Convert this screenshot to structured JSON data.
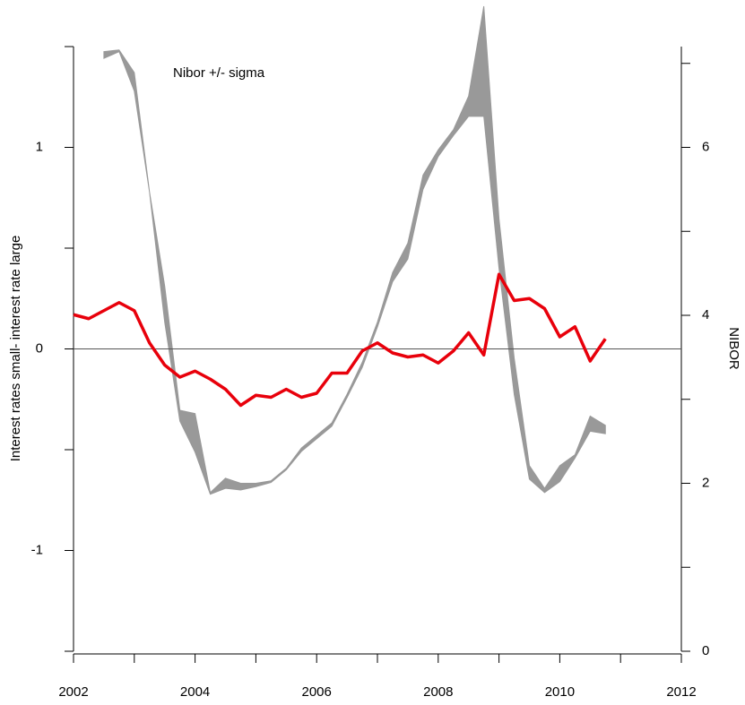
{
  "chart_data": {
    "type": "line",
    "y_label": "Interest rates small- interest rate large",
    "y2_label": "NIBOR",
    "xlim": [
      2002,
      2012
    ],
    "xticks": [
      2002,
      2004,
      2006,
      2008,
      2010,
      2012
    ],
    "xminorticks": [
      2003,
      2005,
      2007,
      2009,
      2011
    ],
    "ylim": [
      -1.5,
      1.5
    ],
    "yticks": [
      -1,
      0,
      1
    ],
    "yminorticks": [
      -1.5,
      -0.5,
      0.5,
      1.5
    ],
    "y2lim": [
      0,
      7.2
    ],
    "y2ticks": [
      0,
      2,
      4,
      6
    ],
    "y2minorticks": [
      1,
      3,
      5,
      7
    ],
    "zero_line": true,
    "x": [
      2002.0,
      2002.25,
      2002.5,
      2002.75,
      2003.0,
      2003.25,
      2003.5,
      2003.75,
      2004.0,
      2004.25,
      2004.5,
      2004.75,
      2005.0,
      2005.25,
      2005.5,
      2005.75,
      2006.0,
      2006.25,
      2006.5,
      2006.75,
      2007.0,
      2007.25,
      2007.5,
      2007.75,
      2008.0,
      2008.25,
      2008.5,
      2008.75,
      2009.0,
      2009.25,
      2009.5,
      2009.75,
      2010.0,
      2010.25,
      2010.5,
      2010.75
    ],
    "series": [
      {
        "color": "#e8000b",
        "values": [
          0.17,
          0.15,
          0.19,
          0.23,
          0.19,
          0.03,
          -0.08,
          -0.14,
          -0.11,
          -0.15,
          -0.2,
          -0.28,
          -0.23,
          -0.24,
          -0.2,
          -0.24,
          -0.22,
          -0.12,
          -0.12,
          -0.01,
          0.03,
          -0.02,
          -0.04,
          -0.03,
          -0.07,
          -0.01,
          0.08,
          -0.03,
          0.37,
          0.24,
          0.25,
          0.2,
          0.06,
          0.11,
          -0.06,
          0.05
        ]
      }
    ],
    "band": {
      "name": "Nibor +/- sigma",
      "color": "#999999",
      "axis": "y2",
      "x": [
        2002.5,
        2002.75,
        2003.0,
        2003.25,
        2003.5,
        2003.75,
        2004.0,
        2004.25,
        2004.5,
        2004.75,
        2005.0,
        2005.25,
        2005.5,
        2005.75,
        2006.0,
        2006.25,
        2006.5,
        2006.75,
        2007.0,
        2007.25,
        2007.5,
        2007.75,
        2008.0,
        2008.25,
        2008.5,
        2008.75,
        2009.0,
        2009.25,
        2009.5,
        2009.75,
        2010.0,
        2010.25,
        2010.5,
        2010.75
      ],
      "high": [
        7.14,
        7.16,
        6.89,
        5.47,
        4.35,
        2.87,
        2.83,
        1.89,
        2.06,
        2.0,
        2.0,
        2.03,
        2.18,
        2.42,
        2.57,
        2.72,
        3.06,
        3.44,
        3.92,
        4.51,
        4.86,
        5.67,
        5.97,
        6.21,
        6.61,
        7.68,
        5.15,
        3.49,
        2.21,
        1.94,
        2.21,
        2.34,
        2.8,
        2.69
      ],
      "low": [
        7.06,
        7.14,
        6.67,
        5.47,
        3.92,
        2.74,
        2.37,
        1.87,
        1.94,
        1.92,
        1.96,
        2.01,
        2.16,
        2.38,
        2.53,
        2.68,
        3.02,
        3.38,
        3.86,
        4.4,
        4.67,
        5.5,
        5.89,
        6.14,
        6.37,
        6.37,
        4.56,
        3.06,
        2.05,
        1.89,
        2.02,
        2.3,
        2.62,
        2.59
      ]
    }
  }
}
